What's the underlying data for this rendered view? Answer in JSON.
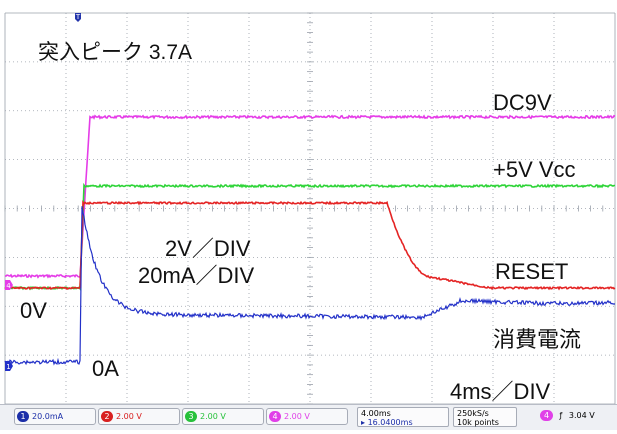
{
  "annotations": {
    "inrush": "突入ピーク 3.7A",
    "dc9v": "DC9V",
    "vcc": "+5V Vcc",
    "v_div": "2V／DIV",
    "ma_div": "20mA／DIV",
    "reset": "RESET",
    "zero_v": "0V",
    "current": "消費電流",
    "zero_a": "0A",
    "time_div": "4ms／DIV"
  },
  "markers": {
    "trigger": "T",
    "ch4": "4",
    "ch1": "1"
  },
  "status_bar": {
    "channels": [
      {
        "num": "1",
        "value": "20.0mA",
        "color": "#1b2ea8"
      },
      {
        "num": "2",
        "value": "2.00 V",
        "color": "#d82020"
      },
      {
        "num": "3",
        "value": "2.00 V",
        "color": "#27c13b"
      },
      {
        "num": "4",
        "value": "2.00 V",
        "color": "#e040e8"
      }
    ],
    "timebase": "4.00ms",
    "delay": "16.0400ms",
    "sample_rate": "250kS/s",
    "record_length": "10k points",
    "trigger_channel": "4",
    "trigger_slope": "ƒ",
    "trigger_level": "3.04 V"
  },
  "colors": {
    "dc9v": "#e53ce8",
    "vcc": "#2ed438",
    "reset": "#e42424",
    "current": "#2230c8",
    "grid": "#9aa0aa"
  }
}
